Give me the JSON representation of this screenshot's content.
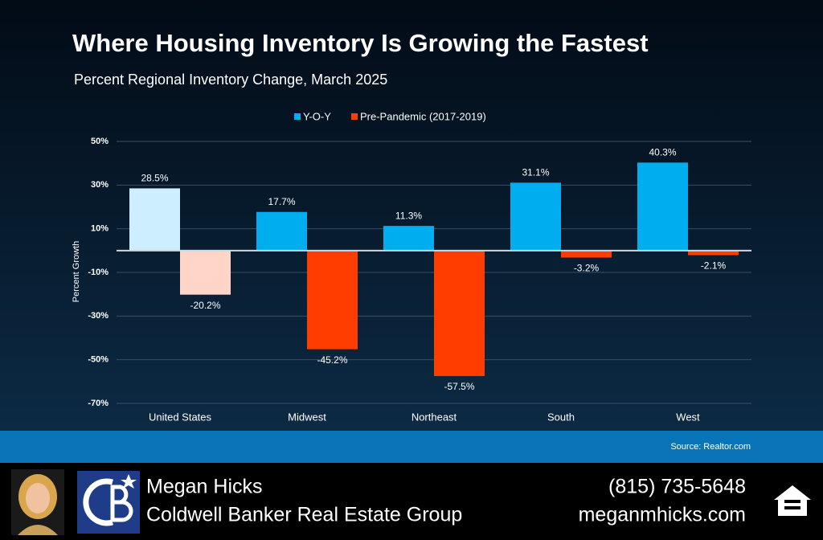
{
  "chart_data": {
    "type": "bar",
    "title": "Where Housing Inventory Is Growing the Fastest",
    "subtitle": "Percent Regional Inventory Change, March 2025",
    "y_label": "Percent Growth",
    "source": "Source: Realtor.com",
    "categories": [
      "United States",
      "Midwest",
      "Northeast",
      "South",
      "West"
    ],
    "series": [
      {
        "name": "Y-O-Y",
        "color": "#00aeef",
        "colors": [
          "#cdeeff",
          "#00aeef",
          "#00aeef",
          "#00aeef",
          "#00aeef"
        ],
        "values": [
          28.5,
          17.7,
          11.3,
          31.1,
          40.3
        ],
        "value_labels": [
          "28.5%",
          "17.7%",
          "11.3%",
          "31.1%",
          "40.3%"
        ]
      },
      {
        "name": "Pre-Pandemic (2017-2019)",
        "color": "#ff3d00",
        "colors": [
          "#ffd5c8",
          "#ff3d00",
          "#ff3d00",
          "#ff3d00",
          "#ff3d00"
        ],
        "values": [
          -20.2,
          -45.2,
          -57.5,
          -3.2,
          -2.1
        ],
        "value_labels": [
          "-20.2%",
          "-45.2%",
          "-57.5%",
          "-3.2%",
          "-2.1%"
        ]
      }
    ],
    "ylim": [
      -70,
      50
    ],
    "yticks": [
      {
        "value": -70,
        "label": "-70%"
      },
      {
        "value": -50,
        "label": "-50%"
      },
      {
        "value": -30,
        "label": "-30%"
      },
      {
        "value": -10,
        "label": "-10%"
      },
      {
        "value": 10,
        "label": "10%"
      },
      {
        "value": 30,
        "label": "30%"
      },
      {
        "value": 50,
        "label": "50%"
      }
    ],
    "grid": true
  },
  "footer": {
    "name": "Megan Hicks",
    "company": "Coldwell Banker Real Estate Group",
    "phone": "(815) 735-5648",
    "website": "meganmhicks.com"
  }
}
